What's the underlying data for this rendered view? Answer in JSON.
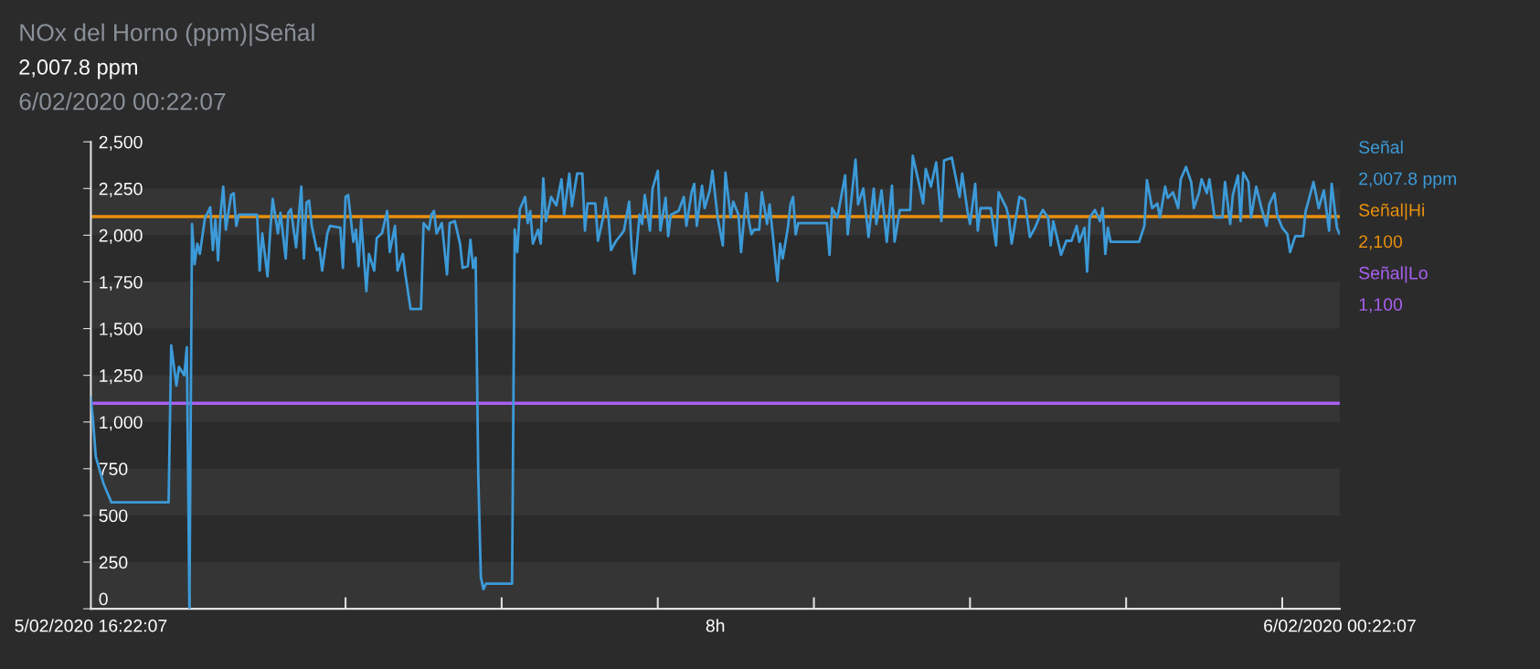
{
  "chart_data": {
    "type": "line",
    "title": "NOx del Horno (ppm)|Señal",
    "subtitle": "2,007.8 ppm",
    "annotations": [
      "6/02/2020 00:22:07",
      "2,007.8 ppm",
      "2,100",
      "1,100"
    ],
    "xlim": [
      "2020-02-05T16:22:07",
      "2020-02-06T00:22:07"
    ],
    "xticks": [
      {
        "value": "2020-02-05T16:22:07",
        "label": "5/02/2020 16:22:07"
      },
      {
        "value": "2020-02-05T17:00",
        "label": null
      },
      {
        "value": "2020-02-05T18:00",
        "label": null
      },
      {
        "value": "2020-02-05T19:00",
        "label": null
      },
      {
        "value": "2020-02-05T20:00",
        "label": null
      },
      {
        "value": "2020-02-05T20:22:07",
        "label": "8h"
      },
      {
        "value": "2020-02-05T21:00",
        "label": null
      },
      {
        "value": "2020-02-05T22:00",
        "label": null
      },
      {
        "value": "2020-02-05T23:00",
        "label": null
      },
      {
        "value": "2020-02-06T00:00",
        "label": null
      },
      {
        "value": "2020-02-06T00:22:07",
        "label": "6/02/2020 00:22:07"
      }
    ],
    "ylim": [
      0,
      2500
    ],
    "yticks": [
      {
        "value": 0,
        "label": "0"
      },
      {
        "value": 250,
        "label": "250"
      },
      {
        "value": 500,
        "label": "500"
      },
      {
        "value": 750,
        "label": "750"
      },
      {
        "value": 1000,
        "label": "1,000"
      },
      {
        "value": 1250,
        "label": "1,250"
      },
      {
        "value": 1500,
        "label": "1,500"
      },
      {
        "value": 1750,
        "label": "1,750"
      },
      {
        "value": 2000,
        "label": "2,000"
      },
      {
        "value": 2250,
        "label": "2,250"
      },
      {
        "value": 2500,
        "label": "2,500"
      }
    ],
    "bands": [
      {
        "axis": "y",
        "from": 0,
        "to": 250,
        "color": "#353535"
      },
      {
        "axis": "y",
        "from": 500,
        "to": 750,
        "color": "#353535"
      },
      {
        "axis": "y",
        "from": 1000,
        "to": 1250,
        "color": "#353535"
      },
      {
        "axis": "y",
        "from": 1500,
        "to": 1750,
        "color": "#353535"
      },
      {
        "axis": "y",
        "from": 2000,
        "to": 2250,
        "color": "#353535"
      }
    ],
    "legend": "right",
    "marker": "none",
    "line_style": "solid",
    "ref_lines": [
      {
        "axis": "y",
        "value": 2100,
        "label": "Señal|Hi",
        "color": "#e8900c",
        "line_style": "solid"
      },
      {
        "axis": "y",
        "value": 1100,
        "label": "Señal|Lo",
        "color": "#a95ff0",
        "line_style": "solid"
      }
    ],
    "series": [
      {
        "name": "Señal",
        "color": "#3c9ad8",
        "x": [
          "2020-02-05T16:22:07",
          "2020-02-05T16:23",
          "2020-02-05T16:24",
          "2020-02-05T16:27",
          "2020-02-05T16:30",
          "2020-02-05T16:52",
          "2020-02-05T16:53",
          "2020-02-05T16:55",
          "2020-02-05T16:56",
          "2020-02-05T16:58",
          "2020-02-05T16:59",
          "2020-02-05T17:00",
          "2020-02-05T17:01",
          "2020-02-05T17:02",
          "2020-02-05T17:03",
          "2020-02-05T17:04",
          "2020-02-05T17:06",
          "2020-02-05T17:07",
          "2020-02-05T17:08",
          "2020-02-05T17:09",
          "2020-02-05T17:10",
          "2020-02-05T17:11",
          "2020-02-05T17:12",
          "2020-02-05T17:13",
          "2020-02-05T17:14",
          "2020-02-05T17:16",
          "2020-02-05T17:17",
          "2020-02-05T17:18",
          "2020-02-05T17:19",
          "2020-02-05T17:26",
          "2020-02-05T17:27",
          "2020-02-05T17:28",
          "2020-02-05T17:30",
          "2020-02-05T17:31",
          "2020-02-05T17:32",
          "2020-02-05T17:34",
          "2020-02-05T17:35",
          "2020-02-05T17:37",
          "2020-02-05T17:38",
          "2020-02-05T17:39",
          "2020-02-05T17:41",
          "2020-02-05T17:43",
          "2020-02-05T17:44",
          "2020-02-05T17:45",
          "2020-02-05T17:46",
          "2020-02-05T17:47",
          "2020-02-05T17:49",
          "2020-02-05T17:50",
          "2020-02-05T17:51",
          "2020-02-05T17:53",
          "2020-02-05T17:54",
          "2020-02-05T17:58",
          "2020-02-05T17:59",
          "2020-02-05T18:00",
          "2020-02-05T18:01",
          "2020-02-05T18:03",
          "2020-02-05T18:04",
          "2020-02-05T18:05",
          "2020-02-05T18:06",
          "2020-02-05T18:08",
          "2020-02-05T18:09",
          "2020-02-05T18:11",
          "2020-02-05T18:12",
          "2020-02-05T18:14",
          "2020-02-05T18:16",
          "2020-02-05T18:17",
          "2020-02-05T18:19",
          "2020-02-05T18:20",
          "2020-02-05T18:22",
          "2020-02-05T18:23",
          "2020-02-05T18:25",
          "2020-02-05T18:29",
          "2020-02-05T18:30",
          "2020-02-05T18:32",
          "2020-02-05T18:33",
          "2020-02-05T18:34",
          "2020-02-05T18:35",
          "2020-02-05T18:37",
          "2020-02-05T18:39",
          "2020-02-05T18:40",
          "2020-02-05T18:42",
          "2020-02-05T18:44",
          "2020-02-05T18:45",
          "2020-02-05T18:47",
          "2020-02-05T18:48",
          "2020-02-05T18:49",
          "2020-02-05T18:50",
          "2020-02-05T18:51",
          "2020-02-05T18:52",
          "2020-02-05T18:53",
          "2020-02-05T18:54",
          "2020-02-05T19:04",
          "2020-02-05T19:05",
          "2020-02-05T19:06",
          "2020-02-05T19:07",
          "2020-02-05T19:09",
          "2020-02-05T19:10",
          "2020-02-05T19:11",
          "2020-02-05T19:12",
          "2020-02-05T19:14",
          "2020-02-05T19:15",
          "2020-02-05T19:16",
          "2020-02-05T19:17",
          "2020-02-05T19:19",
          "2020-02-05T19:21",
          "2020-02-05T19:23",
          "2020-02-05T19:24",
          "2020-02-05T19:26",
          "2020-02-05T19:27",
          "2020-02-05T19:29",
          "2020-02-05T19:31",
          "2020-02-05T19:32",
          "2020-02-05T19:33",
          "2020-02-05T19:36",
          "2020-02-05T19:37",
          "2020-02-05T19:39",
          "2020-02-05T19:40",
          "2020-02-05T19:41",
          "2020-02-05T19:42",
          "2020-02-05T19:44",
          "2020-02-05T19:46",
          "2020-02-05T19:47",
          "2020-02-05T19:49",
          "2020-02-05T19:50",
          "2020-02-05T19:51",
          "2020-02-05T19:53",
          "2020-02-05T19:54",
          "2020-02-05T19:55",
          "2020-02-05T19:57",
          "2020-02-05T19:58",
          "2020-02-05T20:00",
          "2020-02-05T20:01",
          "2020-02-05T20:03",
          "2020-02-05T20:04",
          "2020-02-05T20:05",
          "2020-02-05T20:08",
          "2020-02-05T20:10",
          "2020-02-05T20:11",
          "2020-02-05T20:13",
          "2020-02-05T20:14",
          "2020-02-05T20:15",
          "2020-02-05T20:17",
          "2020-02-05T20:18",
          "2020-02-05T20:20",
          "2020-02-05T20:21",
          "2020-02-05T20:23",
          "2020-02-05T20:25",
          "2020-02-05T20:26",
          "2020-02-05T20:28",
          "2020-02-05T20:29",
          "2020-02-05T20:31",
          "2020-02-05T20:32",
          "2020-02-05T20:34",
          "2020-02-05T20:35",
          "2020-02-05T20:36",
          "2020-02-05T20:37",
          "2020-02-05T20:39",
          "2020-02-05T20:40",
          "2020-02-05T20:42",
          "2020-02-05T20:43",
          "2020-02-05T20:46",
          "2020-02-05T20:47",
          "2020-02-05T20:48",
          "2020-02-05T20:50",
          "2020-02-05T20:51",
          "2020-02-05T20:52",
          "2020-02-05T20:53",
          "2020-02-05T20:54",
          "2020-02-05T21:05",
          "2020-02-05T21:06",
          "2020-02-05T21:07",
          "2020-02-05T21:09",
          "2020-02-05T21:12",
          "2020-02-05T21:13",
          "2020-02-05T21:16",
          "2020-02-05T21:17",
          "2020-02-05T21:19",
          "2020-02-05T21:21",
          "2020-02-05T21:23",
          "2020-02-05T21:24",
          "2020-02-05T21:26",
          "2020-02-05T21:28",
          "2020-02-05T21:30",
          "2020-02-05T21:31",
          "2020-02-05T21:33",
          "2020-02-05T21:37",
          "2020-02-05T21:38",
          "2020-02-05T21:40",
          "2020-02-05T21:42",
          "2020-02-05T21:43",
          "2020-02-05T21:45",
          "2020-02-05T21:47",
          "2020-02-05T21:49",
          "2020-02-05T21:50",
          "2020-02-05T21:53",
          "2020-02-05T21:56",
          "2020-02-05T21:57",
          "2020-02-05T21:59",
          "2020-02-05T22:00",
          "2020-02-05T22:02",
          "2020-02-05T22:03",
          "2020-02-05T22:04",
          "2020-02-05T22:08",
          "2020-02-05T22:10",
          "2020-02-05T22:11",
          "2020-02-05T22:14",
          "2020-02-05T22:15",
          "2020-02-05T22:16",
          "2020-02-05T22:19",
          "2020-02-05T22:21",
          "2020-02-05T22:23",
          "2020-02-05T22:25",
          "2020-02-05T22:27",
          "2020-02-05T22:28",
          "2020-02-05T22:30",
          "2020-02-05T22:31",
          "2020-02-05T22:32",
          "2020-02-05T22:35",
          "2020-02-05T22:37",
          "2020-02-05T22:39",
          "2020-02-05T22:41",
          "2020-02-05T22:42",
          "2020-02-05T22:44",
          "2020-02-05T22:45",
          "2020-02-05T22:46",
          "2020-02-05T22:48",
          "2020-02-05T22:50",
          "2020-02-05T22:51",
          "2020-02-05T22:52",
          "2020-02-05T22:53",
          "2020-02-05T22:54",
          "2020-02-05T23:05",
          "2020-02-05T23:07",
          "2020-02-05T23:08",
          "2020-02-05T23:10",
          "2020-02-05T23:12",
          "2020-02-05T23:13",
          "2020-02-05T23:15",
          "2020-02-05T23:16",
          "2020-02-05T23:18",
          "2020-02-05T23:20",
          "2020-02-05T23:21",
          "2020-02-05T23:23",
          "2020-02-05T23:25",
          "2020-02-05T23:26",
          "2020-02-05T23:28",
          "2020-02-05T23:29",
          "2020-02-05T23:31",
          "2020-02-05T23:32",
          "2020-02-05T23:34",
          "2020-02-05T23:37",
          "2020-02-05T23:38",
          "2020-02-05T23:40",
          "2020-02-05T23:41",
          "2020-02-05T23:43",
          "2020-02-05T23:44",
          "2020-02-05T23:45",
          "2020-02-05T23:47",
          "2020-02-05T23:48",
          "2020-02-05T23:50",
          "2020-02-05T23:52",
          "2020-02-05T23:54",
          "2020-02-05T23:55",
          "2020-02-05T23:57",
          "2020-02-05T23:58",
          "2020-02-06T00:00",
          "2020-02-06T00:02",
          "2020-02-06T00:03",
          "2020-02-06T00:05",
          "2020-02-06T00:08",
          "2020-02-06T00:09",
          "2020-02-06T00:10",
          "2020-02-06T00:12",
          "2020-02-06T00:14",
          "2020-02-06T00:16",
          "2020-02-06T00:18",
          "2020-02-06T00:19",
          "2020-02-06T00:21",
          "2020-02-06T00:22"
        ],
        "values": [
          1130,
          1000,
          815,
          670,
          570,
          570,
          1410,
          1195,
          1295,
          1250,
          1400,
          0,
          2060,
          1845,
          1955,
          1900,
          2095,
          2120,
          2150,
          1920,
          2085,
          1865,
          2120,
          2260,
          2030,
          2215,
          2225,
          2050,
          2110,
          2110,
          1810,
          2010,
          1780,
          2010,
          2195,
          2010,
          2120,
          1875,
          2120,
          2140,
          1935,
          2260,
          1875,
          2175,
          2185,
          2050,
          1920,
          1930,
          1810,
          2010,
          2050,
          2040,
          1825,
          2205,
          2215,
          1965,
          2030,
          1835,
          2085,
          1700,
          1900,
          1810,
          1985,
          2010,
          2130,
          1910,
          2050,
          1810,
          1900,
          1790,
          1605,
          1605,
          2065,
          2030,
          2110,
          2130,
          2010,
          2065,
          1790,
          2065,
          2075,
          1955,
          1825,
          1835,
          1975,
          1825,
          1880,
          725,
          170,
          105,
          135,
          135,
          2030,
          1910,
          2140,
          2205,
          2065,
          2130,
          1955,
          2030,
          1955,
          2305,
          2075,
          2205,
          2160,
          2300,
          2110,
          2330,
          2155,
          2330,
          2330,
          2025,
          2170,
          2170,
          1970,
          2095,
          2200,
          2110,
          1920,
          1970,
          2005,
          2025,
          2180,
          1920,
          1795,
          2110,
          2060,
          2215,
          2025,
          2250,
          2345,
          2025,
          2200,
          1995,
          2110,
          2130,
          2205,
          2050,
          2230,
          2275,
          2050,
          2265,
          2145,
          2240,
          2345,
          2095,
          1945,
          2335,
          2095,
          2180,
          2110,
          1910,
          2225,
          2075,
          2005,
          2030,
          2030,
          2230,
          2060,
          2165,
          1755,
          1955,
          1875,
          2040,
          2165,
          2205,
          2005,
          2065,
          2065,
          1895,
          2145,
          2095,
          2320,
          2005,
          2405,
          2165,
          2250,
          1990,
          2250,
          2060,
          2240,
          1965,
          2265,
          1965,
          2135,
          2135,
          2425,
          2300,
          2170,
          2355,
          2260,
          2390,
          2075,
          2400,
          2415,
          2205,
          2330,
          2130,
          2060,
          2275,
          2025,
          2145,
          2145,
          1945,
          2230,
          2145,
          2085,
          1955,
          2205,
          2190,
          1990,
          2040,
          2110,
          2135,
          2095,
          1945,
          2075,
          1895,
          1970,
          1970,
          2050,
          1965,
          2040,
          1805,
          2095,
          2135,
          2075,
          2145,
          1900,
          2040,
          1965,
          1965,
          2050,
          2295,
          2145,
          2170,
          2095,
          2260,
          2200,
          2230,
          2145,
          2300,
          2365,
          2285,
          2145,
          2225,
          2300,
          2225,
          2300,
          2095,
          2095,
          2285,
          2060,
          2215,
          2320,
          2075,
          2335,
          2285,
          2095,
          2260,
          2145,
          2050,
          2165,
          2225,
          2110,
          2040,
          2005,
          1910,
          1995,
          1995,
          2130,
          2180,
          2285,
          2145,
          2240,
          2025,
          2275,
          2040,
          2008
        ]
      }
    ]
  }
}
